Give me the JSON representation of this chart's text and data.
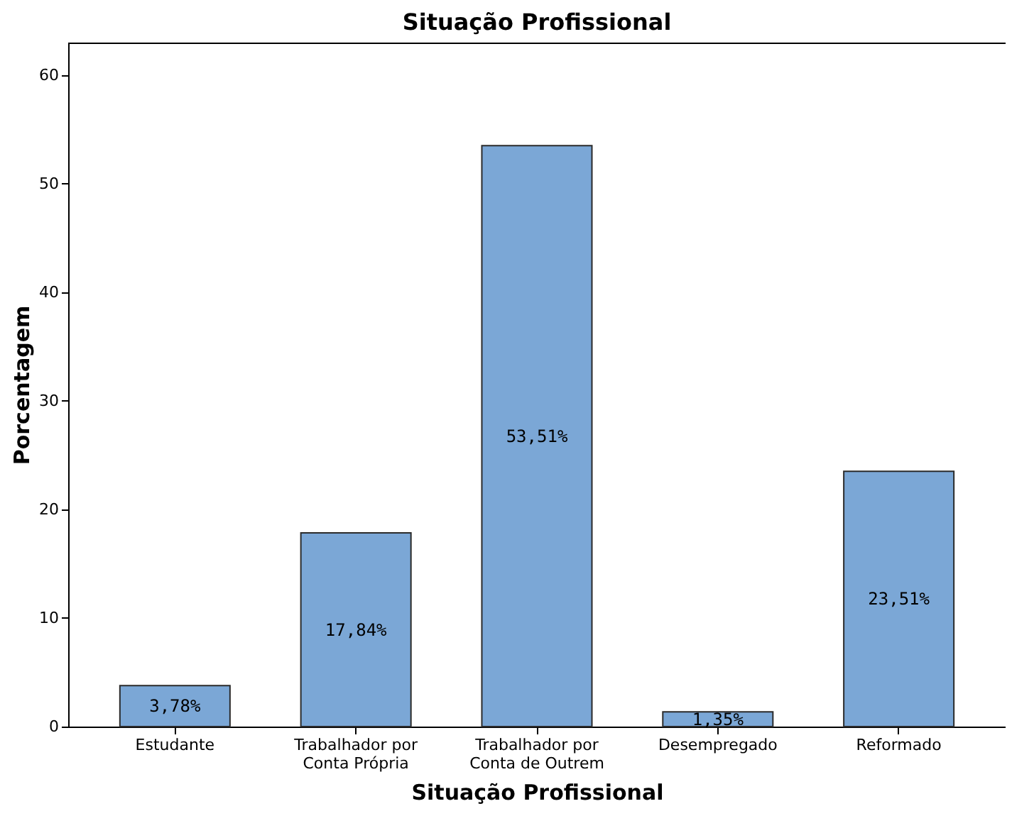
{
  "chart_data": {
    "type": "bar",
    "title": "Situação Profissional",
    "xlabel": "Situação Profissional",
    "ylabel": "Porcentagem",
    "categories": [
      "Estudante",
      "Trabalhador por\nConta Própria",
      "Trabalhador por\nConta de Outrem",
      "Desempregado",
      "Reformado"
    ],
    "values": [
      3.78,
      17.84,
      53.51,
      1.35,
      23.51
    ],
    "value_labels": [
      "3,78%",
      "17,84%",
      "53,51%",
      "1,35%",
      "23,51%"
    ],
    "color": "#7ba7d6",
    "ylim": [
      0,
      63
    ],
    "yticks": [
      0,
      10,
      20,
      30,
      40,
      50,
      60
    ],
    "grid": false
  }
}
